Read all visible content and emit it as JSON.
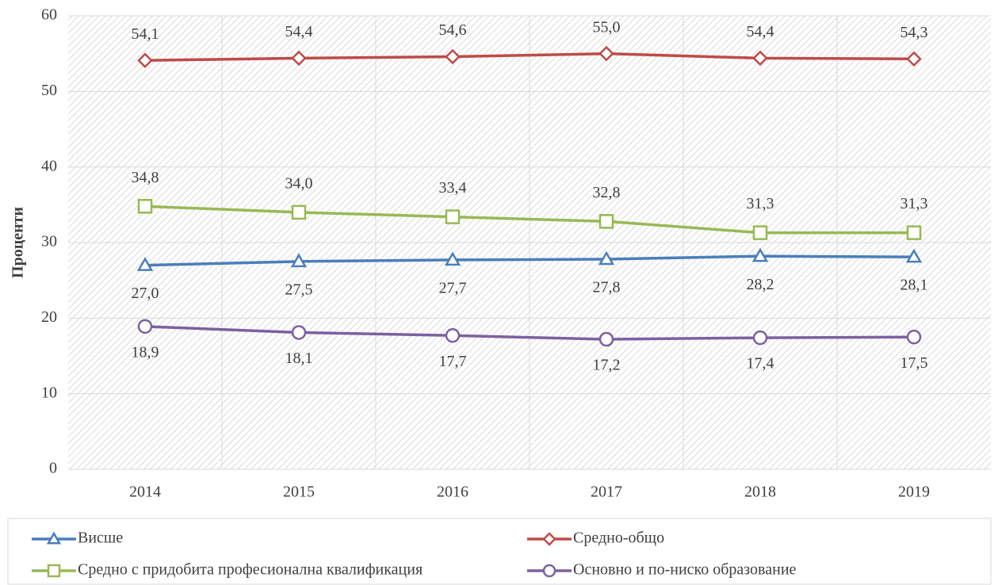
{
  "chart_data": {
    "type": "line",
    "y_label": "Проценти",
    "categories": [
      "2014",
      "2015",
      "2016",
      "2017",
      "2018",
      "2019"
    ],
    "series": [
      {
        "name": "Висше",
        "color": "#4a7ebb",
        "marker": "triangle",
        "values": [
          27.0,
          27.5,
          27.7,
          27.8,
          28.2,
          28.1
        ],
        "value_labels": [
          "27,0",
          "27,5",
          "27,7",
          "27,8",
          "28,2",
          "28,1"
        ]
      },
      {
        "name": "Средно-общо",
        "color": "#be4b48",
        "marker": "diamond",
        "values": [
          54.1,
          54.4,
          54.6,
          55.0,
          54.4,
          54.3
        ],
        "value_labels": [
          "54,1",
          "54,4",
          "54,6",
          "55,0",
          "54,4",
          "54,3"
        ]
      },
      {
        "name": "Средно с придобита професионална квалификация",
        "color": "#98b954",
        "marker": "square",
        "values": [
          34.8,
          34.0,
          33.4,
          32.8,
          31.3,
          31.3
        ],
        "value_labels": [
          "34,8",
          "34,0",
          "33,4",
          "32,8",
          "31,3",
          "31,3"
        ]
      },
      {
        "name": "Основно и по-ниско образование",
        "color": "#7d60a0",
        "marker": "circle",
        "values": [
          18.9,
          18.1,
          17.7,
          17.2,
          17.4,
          17.5
        ],
        "value_labels": [
          "18,9",
          "18,1",
          "17,7",
          "17,2",
          "17,4",
          "17,5"
        ]
      }
    ],
    "ylim": [
      0,
      60
    ],
    "yticks": [
      0,
      10,
      20,
      30,
      40,
      50,
      60
    ],
    "grid": true,
    "legend": "bottom"
  }
}
